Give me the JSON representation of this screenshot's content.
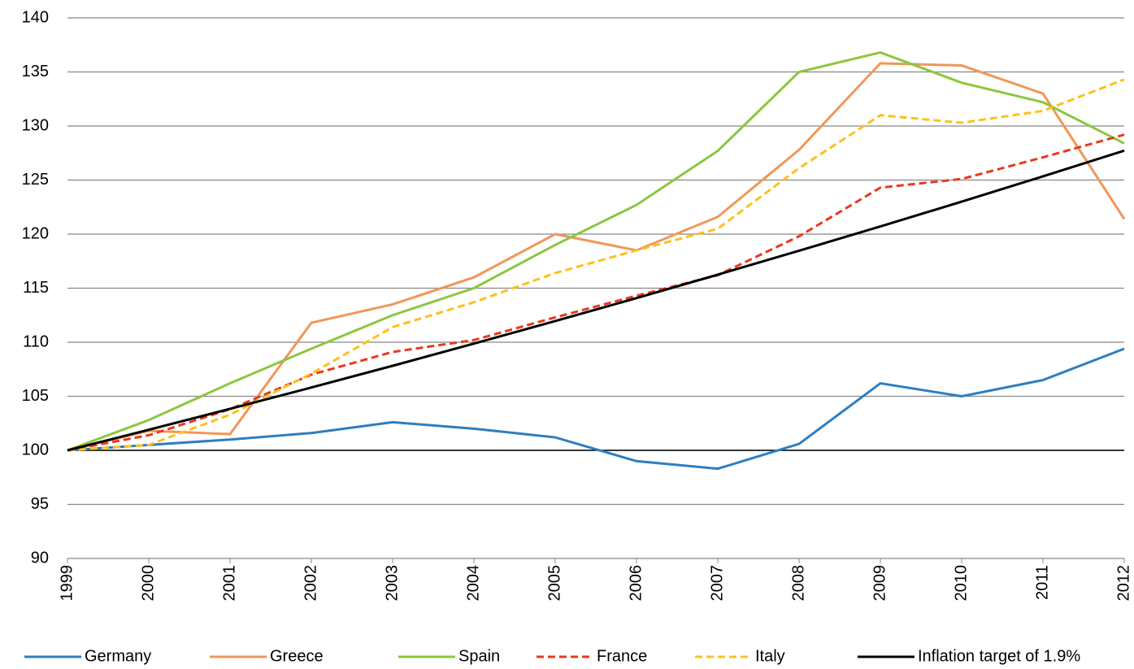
{
  "chart_data": {
    "type": "line",
    "categories": [
      "1999",
      "2000",
      "2001",
      "2002",
      "2003",
      "2004",
      "2005",
      "2006",
      "2007",
      "2008",
      "2009",
      "2010",
      "2011",
      "2012"
    ],
    "series": [
      {
        "name": "Germany",
        "color": "#2e7ebf",
        "dashed": false,
        "values": [
          100,
          100.5,
          101,
          101.6,
          102.6,
          102,
          101.2,
          99,
          98.3,
          100.6,
          106.2,
          105,
          106.5,
          109.4
        ]
      },
      {
        "name": "Greece",
        "color": "#f0975a",
        "dashed": false,
        "values": [
          100,
          101.8,
          101.5,
          111.8,
          113.5,
          116,
          120,
          118.5,
          121.6,
          127.8,
          135.8,
          135.6,
          133,
          121.4
        ]
      },
      {
        "name": "Spain",
        "color": "#8dc63f",
        "dashed": false,
        "values": [
          100,
          102.8,
          106.2,
          109.4,
          112.5,
          115,
          119,
          122.7,
          127.7,
          135,
          136.8,
          134,
          132.2,
          128.4
        ]
      },
      {
        "name": "France",
        "color": "#e8391d",
        "dashed": true,
        "values": [
          100,
          101.4,
          103.8,
          107,
          109.1,
          110.2,
          112.3,
          114.3,
          116.2,
          119.8,
          124.3,
          125.1,
          127.1,
          129.2
        ]
      },
      {
        "name": "Italy",
        "color": "#fcc21b",
        "dashed": true,
        "values": [
          100,
          100.5,
          103.3,
          107.1,
          111.4,
          113.7,
          116.4,
          118.5,
          120.5,
          126.1,
          131,
          130.3,
          131.4,
          134.3
        ]
      },
      {
        "name": "Inflation target of 1.9%",
        "color": "#000000",
        "dashed": false,
        "values": [
          100,
          101.9,
          103.84,
          105.81,
          107.82,
          109.87,
          111.96,
          114.08,
          116.25,
          118.46,
          120.71,
          123,
          125.34,
          127.72
        ]
      }
    ],
    "ylim": [
      90,
      140
    ],
    "yticks": [
      90,
      95,
      100,
      105,
      110,
      115,
      120,
      125,
      130,
      135,
      140
    ],
    "xaxis_at": 100,
    "grid": true,
    "legend": "bottom"
  }
}
